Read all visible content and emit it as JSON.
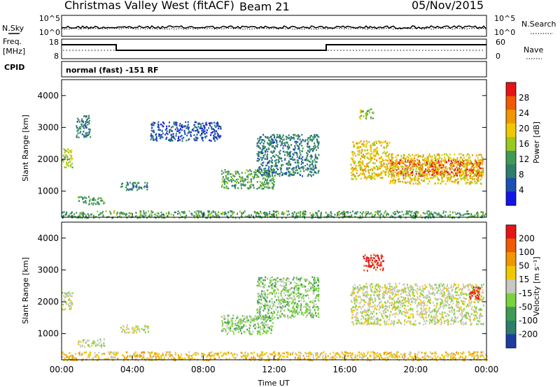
{
  "header": {
    "title": "Christmas Valley West (fitACF)",
    "beam": "Beam 21",
    "date": "05/Nov/2015"
  },
  "params": {
    "nsky_label": "N.Sky",
    "nsearch_label": "N.Search",
    "freq_label_1": "Freq.",
    "freq_label_2": "[MHz]",
    "nave_label": "Nave",
    "cpid_label": "CPID",
    "cpid_text": "normal (fast) -151 RF",
    "noise_ticks_left": [
      "10^5",
      "10^0"
    ],
    "noise_ticks_right": [
      "10^5",
      "10^0"
    ],
    "freq_ticks": [
      "18",
      "8"
    ],
    "nave_ticks": [
      "60",
      "0"
    ]
  },
  "colors": {
    "power_scale": [
      "#1414e6",
      "#1e4fb4",
      "#2f7d6b",
      "#3f9a55",
      "#9ac81e",
      "#f0c800",
      "#f09600",
      "#f05a00",
      "#e61414"
    ],
    "velocity_scale": [
      "#1e3ca0",
      "#2f7d6b",
      "#3f9a55",
      "#7ad23c",
      "#c8c8be",
      "#f0c800",
      "#f09600",
      "#f05a00",
      "#e61414"
    ]
  },
  "chart_data": [
    {
      "type": "heatmap",
      "name": "power",
      "x_ticks": [
        "00:00",
        "04:00",
        "08:00",
        "12:00",
        "16:00",
        "20:00",
        "00:00"
      ],
      "y_ticks": [
        "1000",
        "2000",
        "3000",
        "4000"
      ],
      "ylabel": "Slant Range [km]",
      "colorbar_label": "Power [dB]",
      "colorbar_ticks": [
        "4",
        "8",
        "12",
        "16",
        "20",
        "24",
        "28"
      ],
      "x_range_hours": [
        0,
        24
      ],
      "y_range_km": [
        180,
        4500
      ],
      "regions": [
        {
          "t0": 0.0,
          "t1": 0.6,
          "r0": 1750,
          "r1": 2350,
          "c": 4
        },
        {
          "t0": 0.8,
          "t1": 1.6,
          "r0": 2700,
          "r1": 3400,
          "c": 2
        },
        {
          "t0": 0.9,
          "t1": 2.4,
          "r0": 600,
          "r1": 850,
          "c": 3
        },
        {
          "t0": 3.3,
          "t1": 4.9,
          "r0": 1050,
          "r1": 1300,
          "c": 2
        },
        {
          "t0": 5.0,
          "t1": 9.0,
          "r0": 2600,
          "r1": 3200,
          "c": 1
        },
        {
          "t0": 9.0,
          "t1": 12.0,
          "r0": 1100,
          "r1": 1700,
          "c": 3
        },
        {
          "t0": 11.0,
          "t1": 14.5,
          "r0": 1500,
          "r1": 2800,
          "c": 2
        },
        {
          "t0": 16.3,
          "t1": 18.5,
          "r0": 1400,
          "r1": 2600,
          "c": 5
        },
        {
          "t0": 16.8,
          "t1": 17.6,
          "r0": 3300,
          "r1": 3600,
          "c": 4
        },
        {
          "t0": 18.5,
          "t1": 23.8,
          "r0": 1500,
          "r1": 2000,
          "c": 8
        },
        {
          "t0": 18.5,
          "t1": 23.8,
          "r0": 1250,
          "r1": 2200,
          "c": 5
        },
        {
          "t0": 0.0,
          "t1": 24.0,
          "r0": 180,
          "r1": 400,
          "c": 3
        }
      ]
    },
    {
      "type": "heatmap",
      "name": "velocity",
      "x_ticks": [
        "00:00",
        "04:00",
        "08:00",
        "12:00",
        "16:00",
        "20:00",
        "00:00"
      ],
      "y_ticks": [
        "1000",
        "2000",
        "3000",
        "4000"
      ],
      "ylabel": "Slant Range [km]",
      "xlabel": "Time UT",
      "colorbar_label": "Velocity [m s⁻¹]",
      "colorbar_ticks": [
        "200",
        "100",
        "50",
        "15",
        "-15",
        "-50",
        "-100",
        "-200"
      ],
      "x_range_hours": [
        0,
        24
      ],
      "y_range_km": [
        180,
        4500
      ],
      "regions": [
        {
          "t0": 0.0,
          "t1": 0.6,
          "r0": 1750,
          "r1": 2350,
          "c": 4
        },
        {
          "t0": 0.9,
          "t1": 2.4,
          "r0": 600,
          "r1": 850,
          "c": 4
        },
        {
          "t0": 3.3,
          "t1": 4.9,
          "r0": 1050,
          "r1": 1300,
          "c": 4
        },
        {
          "t0": 9.0,
          "t1": 12.0,
          "r0": 1000,
          "r1": 1600,
          "c": 3
        },
        {
          "t0": 11.0,
          "t1": 14.5,
          "r0": 1500,
          "r1": 2800,
          "c": 3
        },
        {
          "t0": 16.3,
          "t1": 23.8,
          "r0": 1300,
          "r1": 2600,
          "c": 4
        },
        {
          "t0": 17.0,
          "t1": 18.2,
          "r0": 3000,
          "r1": 3500,
          "c": 8
        },
        {
          "t0": 23.0,
          "t1": 23.6,
          "r0": 2100,
          "r1": 2500,
          "c": 8
        },
        {
          "t0": 0.0,
          "t1": 24.0,
          "r0": 180,
          "r1": 450,
          "c": 5
        }
      ]
    }
  ]
}
